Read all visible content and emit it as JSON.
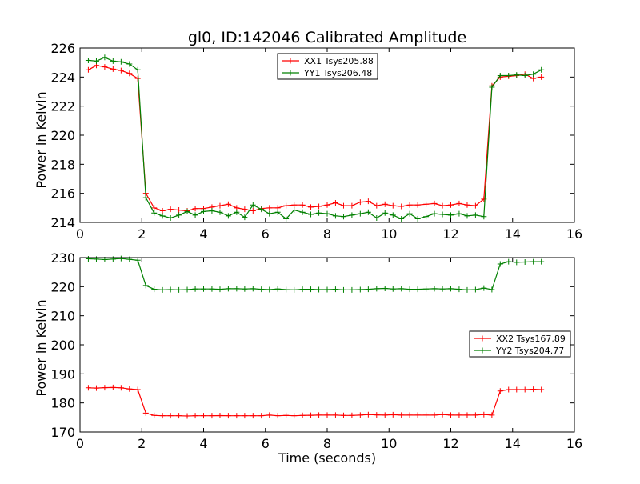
{
  "colors": {
    "red": "#ff0000",
    "green": "#008000",
    "axis": "#000000"
  },
  "chart_data": [
    {
      "type": "line",
      "title": "gl0, ID:142046 Calibrated Amplitude",
      "xlabel": "",
      "ylabel": "Power in Kelvin",
      "xlim": [
        0,
        16
      ],
      "ylim": [
        214,
        226
      ],
      "xticks": [
        0,
        2,
        4,
        6,
        8,
        10,
        12,
        14,
        16
      ],
      "yticks": [
        214,
        216,
        218,
        220,
        222,
        224,
        226
      ],
      "legend_position": "top-center",
      "x": [
        0.27,
        0.53,
        0.8,
        1.07,
        1.33,
        1.6,
        1.87,
        2.13,
        2.4,
        2.67,
        2.93,
        3.2,
        3.47,
        3.73,
        4.0,
        4.27,
        4.53,
        4.8,
        5.07,
        5.33,
        5.6,
        5.87,
        6.13,
        6.4,
        6.67,
        6.93,
        7.2,
        7.47,
        7.73,
        8.0,
        8.27,
        8.53,
        8.8,
        9.07,
        9.33,
        9.6,
        9.87,
        10.13,
        10.4,
        10.67,
        10.93,
        11.2,
        11.47,
        11.73,
        12.0,
        12.27,
        12.53,
        12.8,
        13.07,
        13.33,
        13.6,
        13.87,
        14.13,
        14.4,
        14.67,
        14.93
      ],
      "series": [
        {
          "name": "XX1 Tsys205.88",
          "color": "#ff0000",
          "values": [
            224.5,
            224.8,
            224.7,
            224.55,
            224.45,
            224.25,
            223.9,
            216.0,
            215.0,
            214.8,
            214.9,
            214.85,
            214.8,
            214.95,
            214.95,
            215.05,
            215.15,
            215.25,
            215.0,
            214.9,
            214.8,
            214.95,
            215.0,
            215.0,
            215.15,
            215.2,
            215.2,
            215.05,
            215.1,
            215.2,
            215.35,
            215.15,
            215.15,
            215.4,
            215.45,
            215.15,
            215.25,
            215.15,
            215.1,
            215.2,
            215.2,
            215.25,
            215.3,
            215.15,
            215.2,
            215.3,
            215.2,
            215.15,
            215.6,
            223.4,
            224.0,
            224.05,
            224.1,
            224.2,
            223.9,
            224.0
          ]
        },
        {
          "name": "YY1 Tsys206.48",
          "color": "#008000",
          "values": [
            225.15,
            225.1,
            225.35,
            225.1,
            225.05,
            224.9,
            224.5,
            215.7,
            214.65,
            214.45,
            214.3,
            214.5,
            214.75,
            214.5,
            214.75,
            214.8,
            214.7,
            214.45,
            214.7,
            214.35,
            215.2,
            214.9,
            214.6,
            214.7,
            214.25,
            214.85,
            214.7,
            214.55,
            214.65,
            214.6,
            214.45,
            214.4,
            214.5,
            214.6,
            214.7,
            214.3,
            214.65,
            214.5,
            214.25,
            214.6,
            214.25,
            214.4,
            214.6,
            214.55,
            214.5,
            214.6,
            214.45,
            214.5,
            214.4,
            223.3,
            224.1,
            224.1,
            224.15,
            224.1,
            224.2,
            224.5
          ]
        }
      ]
    },
    {
      "type": "line",
      "title": "",
      "xlabel": "Time (seconds)",
      "ylabel": "Power in Kelvin",
      "xlim": [
        0,
        16
      ],
      "ylim": [
        170,
        230
      ],
      "xticks": [
        0,
        2,
        4,
        6,
        8,
        10,
        12,
        14,
        16
      ],
      "yticks": [
        170,
        180,
        190,
        200,
        210,
        220,
        230
      ],
      "legend_position": "center-right",
      "x": [
        0.27,
        0.53,
        0.8,
        1.07,
        1.33,
        1.6,
        1.87,
        2.13,
        2.4,
        2.67,
        2.93,
        3.2,
        3.47,
        3.73,
        4.0,
        4.27,
        4.53,
        4.8,
        5.07,
        5.33,
        5.6,
        5.87,
        6.13,
        6.4,
        6.67,
        6.93,
        7.2,
        7.47,
        7.73,
        8.0,
        8.27,
        8.53,
        8.8,
        9.07,
        9.33,
        9.6,
        9.87,
        10.13,
        10.4,
        10.67,
        10.93,
        11.2,
        11.47,
        11.73,
        12.0,
        12.27,
        12.53,
        12.8,
        13.07,
        13.33,
        13.6,
        13.87,
        14.13,
        14.4,
        14.67,
        14.93
      ],
      "series": [
        {
          "name": "XX2 Tsys167.89",
          "color": "#ff0000",
          "values": [
            185.2,
            185.1,
            185.25,
            185.3,
            185.2,
            184.8,
            184.6,
            176.5,
            175.7,
            175.6,
            175.6,
            175.6,
            175.5,
            175.6,
            175.6,
            175.6,
            175.65,
            175.6,
            175.6,
            175.6,
            175.6,
            175.6,
            175.8,
            175.6,
            175.7,
            175.6,
            175.7,
            175.75,
            175.8,
            175.8,
            175.8,
            175.7,
            175.7,
            175.8,
            176.0,
            175.9,
            175.8,
            175.95,
            175.8,
            175.8,
            175.8,
            175.8,
            175.8,
            176.0,
            175.8,
            175.8,
            175.8,
            175.8,
            176.0,
            175.8,
            184.1,
            184.6,
            184.6,
            184.6,
            184.7,
            184.6
          ]
        },
        {
          "name": "YY2 Tsys204.77",
          "color": "#008000",
          "values": [
            229.6,
            229.5,
            229.3,
            229.5,
            229.7,
            229.4,
            229.1,
            220.4,
            219.1,
            218.9,
            219.0,
            218.9,
            219.0,
            219.2,
            219.2,
            219.2,
            219.1,
            219.3,
            219.3,
            219.2,
            219.3,
            219.1,
            219.0,
            219.2,
            219.0,
            218.9,
            219.1,
            219.1,
            219.0,
            219.0,
            219.1,
            218.9,
            218.9,
            219.0,
            219.1,
            219.3,
            219.4,
            219.2,
            219.3,
            219.1,
            219.1,
            219.2,
            219.3,
            219.2,
            219.3,
            219.1,
            218.9,
            219.0,
            219.5,
            219.0,
            227.8,
            228.6,
            228.4,
            228.5,
            228.6,
            228.6
          ]
        }
      ]
    }
  ]
}
